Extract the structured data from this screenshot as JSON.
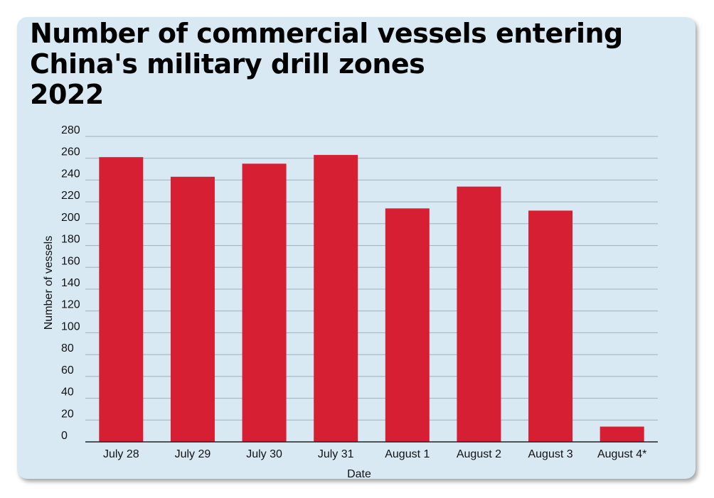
{
  "chart_data": {
    "type": "bar",
    "title": "Number of commercial vessels entering",
    "title_line2": "China's military drill zones",
    "subtitle": "2022",
    "xlabel": "Date",
    "ylabel": "Number of vessels",
    "categories": [
      "July 28",
      "July 29",
      "July 30",
      "July 31",
      "August 1",
      "August 2",
      "August 3",
      "August 4*"
    ],
    "values": [
      261,
      243,
      255,
      263,
      214,
      234,
      212,
      14
    ],
    "ylim": [
      0,
      280
    ],
    "yticks": [
      0,
      20,
      40,
      60,
      80,
      100,
      120,
      140,
      160,
      180,
      200,
      220,
      240,
      260,
      280
    ],
    "grid": true,
    "legend": "none",
    "bar_color": "#d71f34",
    "grid_color": "#9fb0bd",
    "background_color": "#d9e9f4"
  }
}
